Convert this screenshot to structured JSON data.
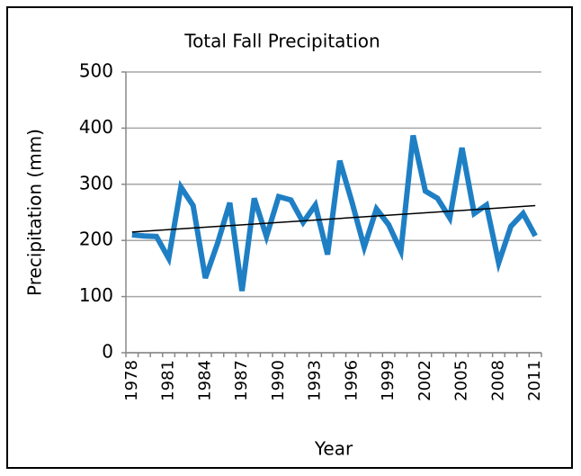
{
  "chart_data": {
    "type": "line",
    "title": "Total Fall Precipitation",
    "y_label": "Precipitation (mm)",
    "x_label": "Year",
    "categories": [
      "1978",
      null,
      null,
      "1981",
      null,
      null,
      "1984",
      null,
      null,
      "1987",
      null,
      null,
      "1990",
      null,
      null,
      "1993",
      null,
      null,
      "1996",
      null,
      null,
      "1999",
      null,
      null,
      "2002",
      null,
      null,
      "2005",
      null,
      null,
      "2008",
      null,
      null,
      "2011"
    ],
    "series": [
      {
        "color": "#1f7fc4",
        "values": [
          210,
          208,
          207,
          168,
          295,
          262,
          133,
          195,
          267,
          110,
          275,
          207,
          278,
          272,
          232,
          263,
          175,
          342,
          268,
          188,
          256,
          228,
          181,
          387,
          288,
          275,
          240,
          365,
          248,
          263,
          160,
          225,
          248,
          208
        ]
      }
    ],
    "trend": {
      "start": 215,
      "end": 262,
      "color": "#000000"
    },
    "ylim": [
      0,
      500
    ],
    "yticks": [
      0,
      100,
      200,
      300,
      400,
      500
    ],
    "grid": true
  }
}
